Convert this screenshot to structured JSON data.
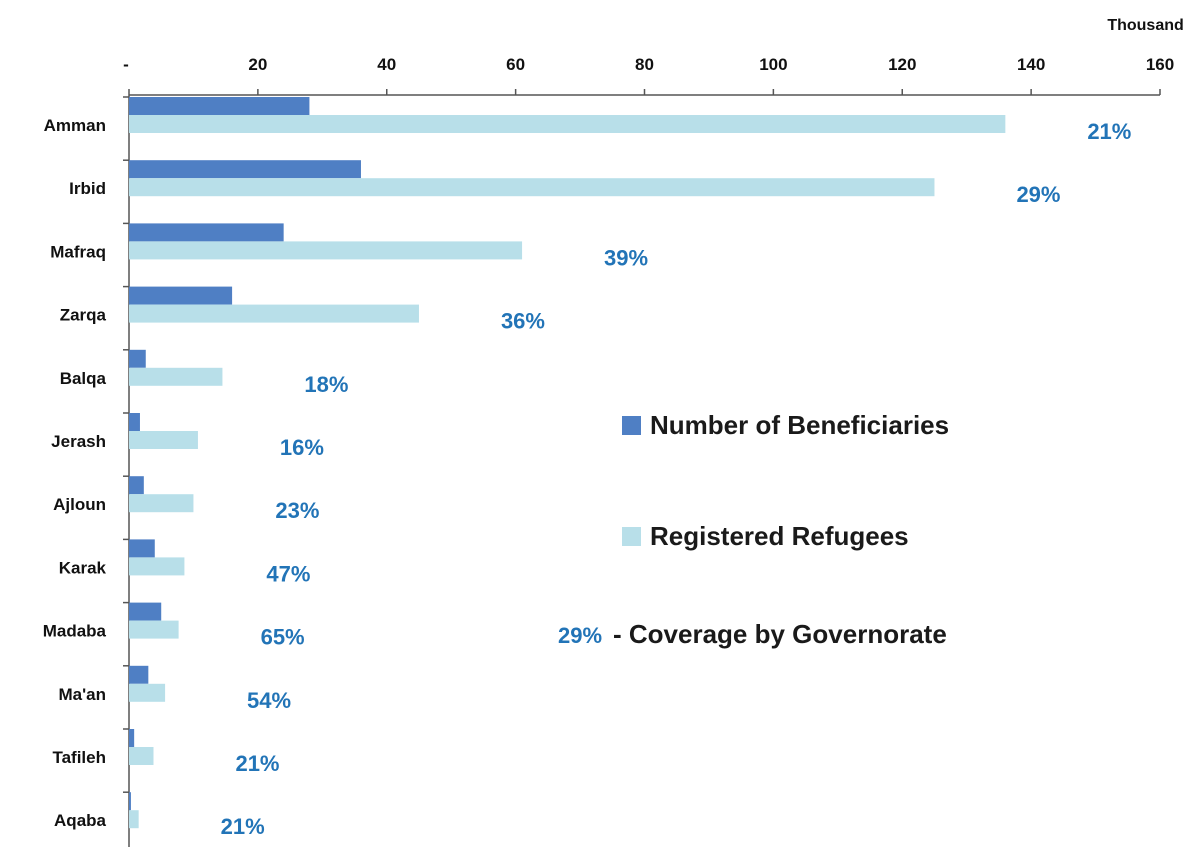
{
  "chart_data": {
    "type": "bar",
    "orientation": "horizontal",
    "units_label": "Thousands",
    "x_axis_position": "top",
    "xlim": [
      0,
      160
    ],
    "x_ticks": [
      {
        "value": 0,
        "label": "-"
      },
      {
        "value": 20,
        "label": "20"
      },
      {
        "value": 40,
        "label": "40"
      },
      {
        "value": 60,
        "label": "60"
      },
      {
        "value": 80,
        "label": "80"
      },
      {
        "value": 100,
        "label": "100"
      },
      {
        "value": 120,
        "label": "120"
      },
      {
        "value": 140,
        "label": "140"
      },
      {
        "value": 160,
        "label": "160"
      }
    ],
    "categories": [
      "Amman",
      "Irbid",
      "Mafraq",
      "Zarqa",
      "Balqa",
      "Jerash",
      "Ajloun",
      "Karak",
      "Madaba",
      "Ma'an",
      "Tafileh",
      "Aqaba"
    ],
    "series": [
      {
        "name": "Number of Beneficiaries",
        "color": "#4f7fc4",
        "values": [
          28,
          36,
          24,
          16,
          2.6,
          1.7,
          2.3,
          4,
          5,
          3,
          0.8,
          0.3
        ]
      },
      {
        "name": "Registered Refugees",
        "color": "#b8dfe9",
        "values": [
          136,
          125,
          61,
          45,
          14.5,
          10.7,
          10,
          8.6,
          7.7,
          5.6,
          3.8,
          1.5
        ]
      }
    ],
    "coverage_labels": [
      "21%",
      "29%",
      "39%",
      "36%",
      "18%",
      "16%",
      "23%",
      "47%",
      "65%",
      "54%",
      "21%",
      "21%"
    ],
    "coverage_color": "#2274b7",
    "legend": {
      "placement": "right",
      "items": [
        {
          "label": "Number of Beneficiaries",
          "color": "#4f7fc4"
        },
        {
          "label": "Registered Refugees",
          "color": "#b8dfe9"
        }
      ],
      "coverage_note": {
        "example": "29%",
        "text": " - Coverage by Governorate"
      }
    },
    "grid": false
  }
}
